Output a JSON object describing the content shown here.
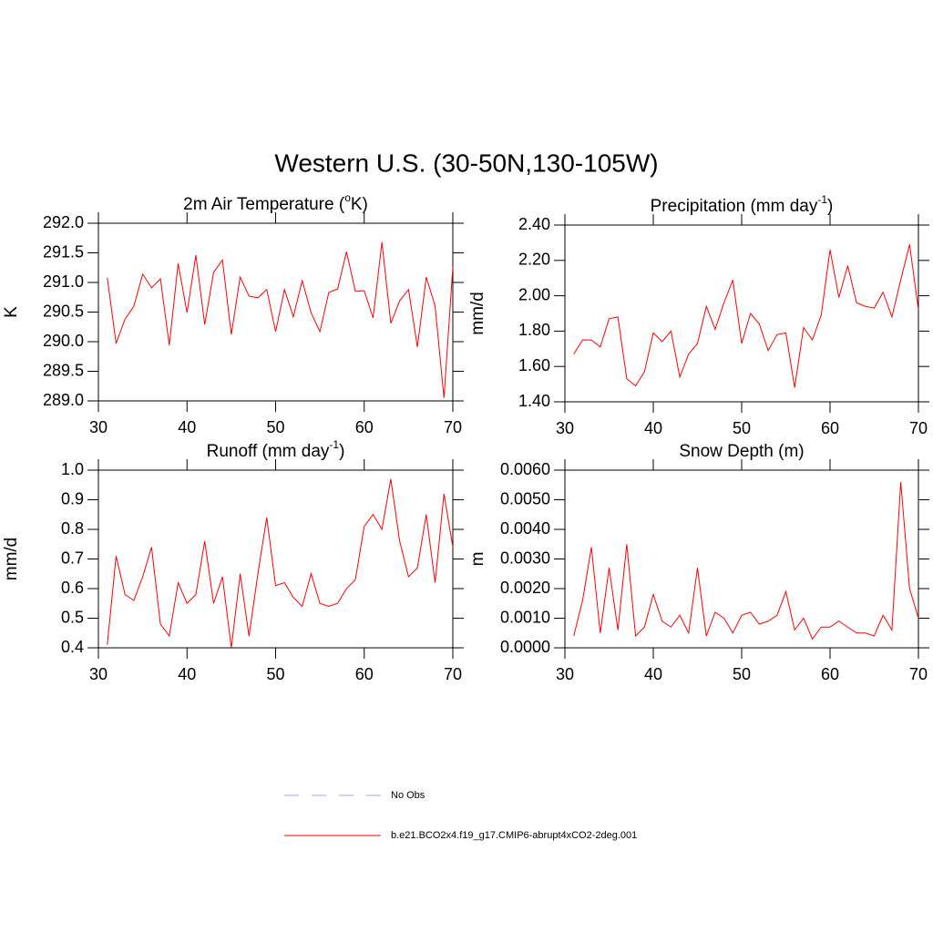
{
  "title": "Western U.S. (30-50N,130-105W)",
  "legend": [
    {
      "name": "No Obs",
      "color": "#a0a0ff",
      "dash": true
    },
    {
      "name": "b.e21.BCO2x4.f19_g17.CMIP6-abrupt4xCO2-2deg.001",
      "color": "#ff0000",
      "dash": false
    }
  ],
  "chart_data": [
    {
      "type": "line",
      "title": [
        "2m Air Temperature (",
        "o",
        "K)"
      ],
      "ylabel": "K",
      "color": "#ff0000",
      "x": [
        31,
        32,
        33,
        34,
        35,
        36,
        37,
        38,
        39,
        40,
        41,
        42,
        43,
        44,
        45,
        46,
        47,
        48,
        49,
        50,
        51,
        52,
        53,
        54,
        55,
        56,
        57,
        58,
        59,
        60,
        61,
        62,
        63,
        64,
        65,
        66,
        67,
        68,
        69,
        70
      ],
      "values": [
        291.08,
        289.97,
        290.38,
        290.6,
        291.14,
        290.91,
        291.06,
        289.94,
        291.32,
        290.49,
        291.46,
        290.29,
        291.17,
        291.38,
        290.12,
        291.09,
        290.77,
        290.74,
        290.88,
        290.17,
        290.88,
        290.42,
        291.03,
        290.49,
        290.17,
        290.83,
        290.89,
        291.52,
        290.85,
        290.86,
        290.4,
        291.68,
        290.31,
        290.69,
        290.88,
        289.91,
        291.09,
        290.6,
        289.05,
        291.26
      ],
      "xlim": [
        30,
        70
      ],
      "xticks": [
        30,
        40,
        50,
        60,
        70
      ],
      "ylim": [
        289,
        292
      ],
      "yticks": [
        {
          "value": 289,
          "label": "289.0"
        },
        {
          "value": 289.5,
          "label": "289.5"
        },
        {
          "value": 290,
          "label": "290.0"
        },
        {
          "value": 290.5,
          "label": "290.5"
        },
        {
          "value": 291,
          "label": "291.0"
        },
        {
          "value": 291.5,
          "label": "291.5"
        },
        {
          "value": 292,
          "label": "292.0"
        }
      ]
    },
    {
      "type": "line",
      "title": [
        "Precipitation (mm day",
        "-1",
        ")"
      ],
      "ylabel": "mm/d",
      "color": "#ff0000",
      "x": [
        31,
        32,
        33,
        34,
        35,
        36,
        37,
        38,
        39,
        40,
        41,
        42,
        43,
        44,
        45,
        46,
        47,
        48,
        49,
        50,
        51,
        52,
        53,
        54,
        55,
        56,
        57,
        58,
        59,
        60,
        61,
        62,
        63,
        64,
        65,
        66,
        67,
        68,
        69,
        70
      ],
      "values": [
        1.67,
        1.75,
        1.75,
        1.71,
        1.87,
        1.88,
        1.53,
        1.49,
        1.57,
        1.79,
        1.74,
        1.8,
        1.54,
        1.67,
        1.73,
        1.94,
        1.81,
        1.96,
        2.09,
        1.73,
        1.9,
        1.84,
        1.69,
        1.78,
        1.79,
        1.48,
        1.82,
        1.75,
        1.89,
        2.26,
        1.99,
        2.17,
        1.96,
        1.94,
        1.93,
        2.02,
        1.88,
        2.09,
        2.29,
        1.92
      ],
      "xlim": [
        30,
        70
      ],
      "xticks": [
        30,
        40,
        50,
        60,
        70
      ],
      "ylim": [
        1.4,
        2.4
      ],
      "yticks": [
        {
          "value": 1.4,
          "label": "1.40"
        },
        {
          "value": 1.6,
          "label": "1.60"
        },
        {
          "value": 1.8,
          "label": "1.80"
        },
        {
          "value": 2.0,
          "label": "2.00"
        },
        {
          "value": 2.2,
          "label": "2.20"
        },
        {
          "value": 2.4,
          "label": "2.40"
        }
      ]
    },
    {
      "type": "line",
      "title": [
        "Runoff (mm day",
        "-1",
        ")"
      ],
      "ylabel": "mm/d",
      "color": "#ff0000",
      "x": [
        31,
        32,
        33,
        34,
        35,
        36,
        37,
        38,
        39,
        40,
        41,
        42,
        43,
        44,
        45,
        46,
        47,
        48,
        49,
        50,
        51,
        52,
        53,
        54,
        55,
        56,
        57,
        58,
        59,
        60,
        61,
        62,
        63,
        64,
        65,
        66,
        67,
        68,
        69,
        70
      ],
      "values": [
        0.41,
        0.71,
        0.58,
        0.56,
        0.64,
        0.74,
        0.48,
        0.44,
        0.62,
        0.55,
        0.58,
        0.76,
        0.55,
        0.64,
        0.4,
        0.65,
        0.44,
        0.65,
        0.84,
        0.61,
        0.62,
        0.57,
        0.54,
        0.65,
        0.55,
        0.54,
        0.55,
        0.6,
        0.63,
        0.81,
        0.85,
        0.8,
        0.97,
        0.76,
        0.64,
        0.67,
        0.85,
        0.62,
        0.92,
        0.74
      ],
      "xlim": [
        30,
        70
      ],
      "xticks": [
        30,
        40,
        50,
        60,
        70
      ],
      "ylim": [
        0.4,
        1.0
      ],
      "yticks": [
        0.4,
        0.5,
        0.6,
        0.7,
        0.8,
        0.9,
        {
          "value": 1.0,
          "label": "1.0"
        }
      ]
    },
    {
      "type": "line",
      "title": [
        "Snow Depth (m)"
      ],
      "ylabel": "m",
      "color": "#ff0000",
      "x": [
        31,
        32,
        33,
        34,
        35,
        36,
        37,
        38,
        39,
        40,
        41,
        42,
        43,
        44,
        45,
        46,
        47,
        48,
        49,
        50,
        51,
        52,
        53,
        54,
        55,
        56,
        57,
        58,
        59,
        60,
        61,
        62,
        63,
        64,
        65,
        66,
        67,
        68,
        69,
        70
      ],
      "values": [
        0.0004,
        0.0016,
        0.0034,
        0.0005,
        0.0027,
        0.0006,
        0.0035,
        0.0004,
        0.0007,
        0.0018,
        0.0009,
        0.0007,
        0.0011,
        0.0005,
        0.0027,
        0.0004,
        0.0012,
        0.001,
        0.0005,
        0.0011,
        0.0012,
        0.0008,
        0.0009,
        0.0011,
        0.0019,
        0.0006,
        0.001,
        0.0003,
        0.0007,
        0.0007,
        0.0009,
        0.0007,
        0.0005,
        0.0005,
        0.0004,
        0.0011,
        0.0006,
        0.0056,
        0.002,
        0.001
      ],
      "xlim": [
        30,
        70
      ],
      "xticks": [
        30,
        40,
        50,
        60,
        70
      ],
      "ylim": [
        0,
        0.006
      ],
      "yticks": [
        {
          "value": 0,
          "label": "0.0000"
        },
        {
          "value": 0.001,
          "label": "0.0010"
        },
        {
          "value": 0.002,
          "label": "0.0020"
        },
        {
          "value": 0.003,
          "label": "0.0030"
        },
        {
          "value": 0.004,
          "label": "0.0040"
        },
        {
          "value": 0.005,
          "label": "0.0050"
        },
        {
          "value": 0.006,
          "label": "0.0060"
        }
      ]
    }
  ]
}
